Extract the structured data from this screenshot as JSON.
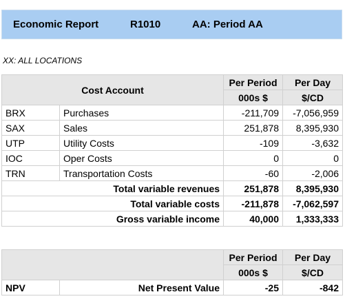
{
  "header": {
    "title": "Economic Report",
    "code": "R1010",
    "period": "AA: Period AA"
  },
  "location": "XX: ALL LOCATIONS",
  "table": {
    "cost_account_header": "Cost Account",
    "col1_header": "Per Period",
    "col1_unit": "000s $",
    "col2_header": "Per Day",
    "col2_unit": "$/CD",
    "rows": [
      {
        "code": "BRX",
        "name": "Purchases",
        "per_period": "-211,709",
        "per_day": "-7,056,959"
      },
      {
        "code": "SAX",
        "name": "Sales",
        "per_period": "251,878",
        "per_day": "8,395,930"
      },
      {
        "code": "UTP",
        "name": "Utility Costs",
        "per_period": "-109",
        "per_day": "-3,632"
      },
      {
        "code": "IOC",
        "name": "Oper Costs",
        "per_period": "0",
        "per_day": "0"
      },
      {
        "code": "TRN",
        "name": "Transportation Costs",
        "per_period": "-60",
        "per_day": "-2,006"
      }
    ],
    "totals": [
      {
        "label": "Total variable revenues",
        "per_period": "251,878",
        "per_day": "8,395,930"
      },
      {
        "label": "Total variable costs",
        "per_period": "-211,878",
        "per_day": "-7,062,597"
      },
      {
        "label": "Gross variable income",
        "per_period": "40,000",
        "per_day": "1,333,333"
      }
    ]
  },
  "npv_table": {
    "col1_header": "Per Period",
    "col1_unit": "000s $",
    "col2_header": "Per Day",
    "col2_unit": "$/CD",
    "code": "NPV",
    "label": "Net Present Value",
    "per_period": "-25",
    "per_day": "-842"
  }
}
